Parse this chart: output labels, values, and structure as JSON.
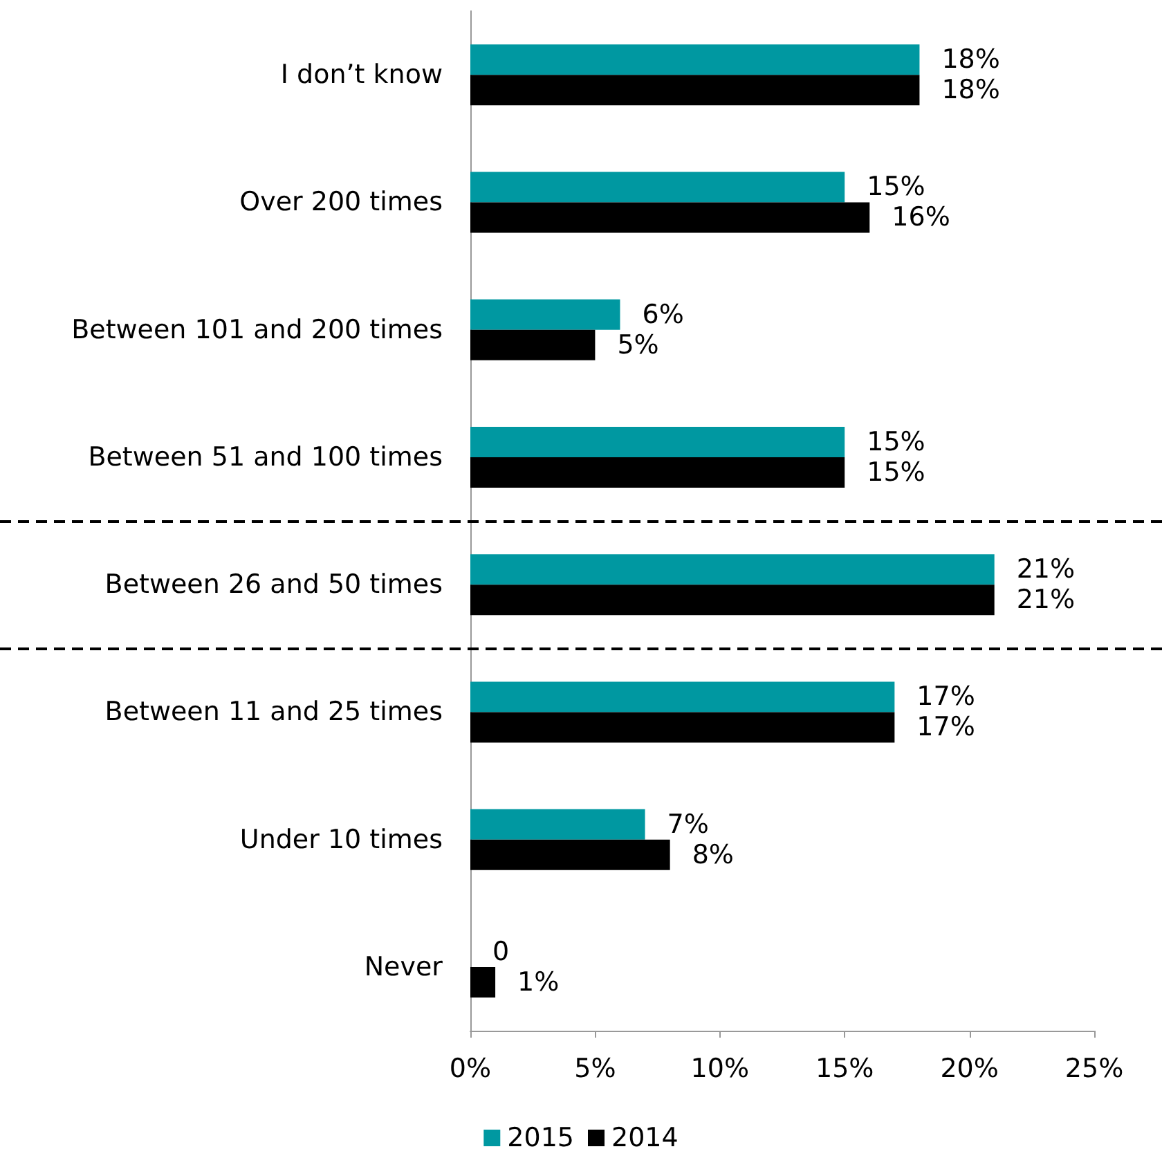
{
  "chart_data": {
    "type": "bar",
    "orientation": "horizontal",
    "categories": [
      "I don’t know",
      "Over 200 times",
      "Between 101 and 200 times",
      "Between 51 and 100 times",
      "Between 26 and 50 times",
      "Between 11 and 25 times",
      "Under 10 times",
      "Never"
    ],
    "series": [
      {
        "name": "2015",
        "color": "#0098a1",
        "values": [
          18,
          15,
          6,
          15,
          21,
          17,
          7,
          0
        ],
        "value_labels": [
          "18%",
          "15%",
          "6%",
          "15%",
          "21%",
          "17%",
          "7%",
          "0"
        ]
      },
      {
        "name": "2014",
        "color": "#000000",
        "values": [
          18,
          16,
          5,
          15,
          21,
          17,
          8,
          1
        ],
        "value_labels": [
          "18%",
          "16%",
          "5%",
          "15%",
          "21%",
          "17%",
          "8%",
          "1%"
        ]
      }
    ],
    "xlim": [
      0,
      25
    ],
    "xticks": [
      {
        "value": 0,
        "label": "0%"
      },
      {
        "value": 5,
        "label": "5%"
      },
      {
        "value": 10,
        "label": "10%"
      },
      {
        "value": 15,
        "label": "15%"
      },
      {
        "value": 20,
        "label": "20%"
      },
      {
        "value": 25,
        "label": "25%"
      }
    ],
    "grid": false,
    "legend": "bottom"
  }
}
